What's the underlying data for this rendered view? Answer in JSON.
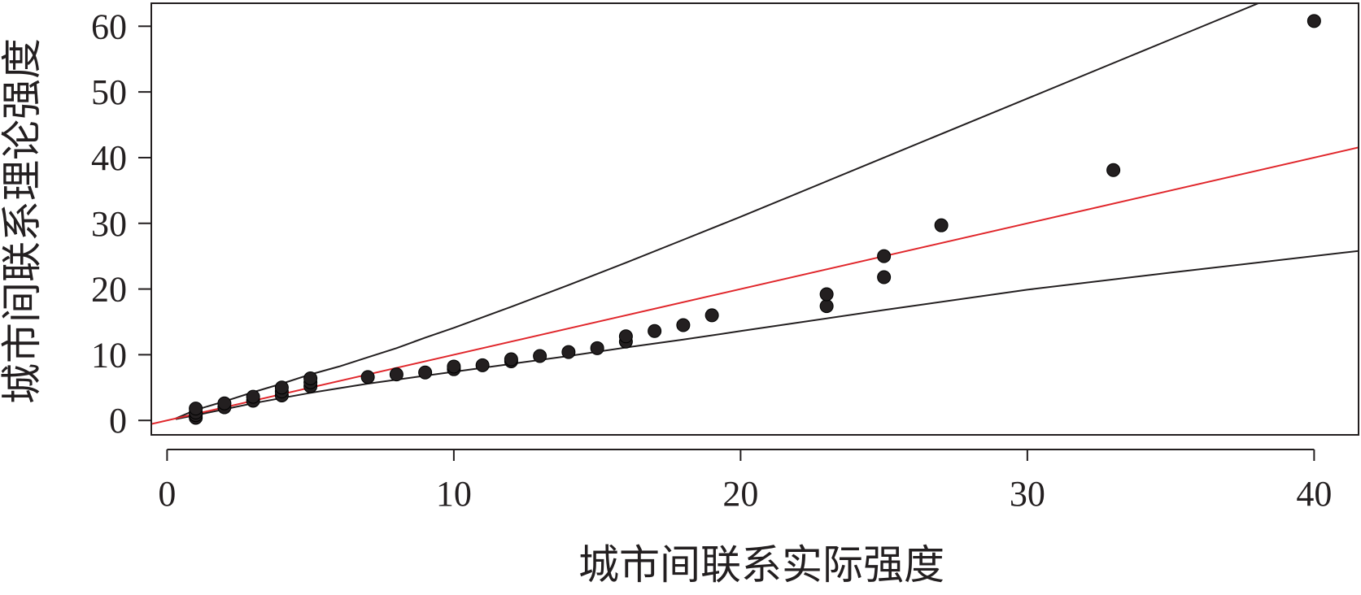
{
  "chart_data": {
    "type": "scatter",
    "title": "",
    "xlabel": "城市间联系实际强度",
    "ylabel": "城市间联系理论强度",
    "xlim": [
      -0.55,
      41.55
    ],
    "ylim": [
      -2.2,
      63.5
    ],
    "xticks": [
      0,
      10,
      20,
      30,
      40
    ],
    "yticks": [
      0,
      10,
      20,
      30,
      40,
      50,
      60
    ],
    "grid": false,
    "legend": "none",
    "colors": {
      "points": "#231f20",
      "reference_line": "#e0262b",
      "bounds": "#231f20",
      "frame": "#231f20"
    },
    "points": [
      {
        "x": 1,
        "y": 0.4
      },
      {
        "x": 1,
        "y": 0.8
      },
      {
        "x": 1,
        "y": 1.2
      },
      {
        "x": 1,
        "y": 1.8
      },
      {
        "x": 2,
        "y": 2.0
      },
      {
        "x": 2,
        "y": 2.6
      },
      {
        "x": 3,
        "y": 3.0
      },
      {
        "x": 3,
        "y": 3.6
      },
      {
        "x": 4,
        "y": 3.8
      },
      {
        "x": 4,
        "y": 4.4
      },
      {
        "x": 4,
        "y": 5.0
      },
      {
        "x": 5,
        "y": 5.2
      },
      {
        "x": 5,
        "y": 5.8
      },
      {
        "x": 5,
        "y": 6.4
      },
      {
        "x": 7,
        "y": 6.6
      },
      {
        "x": 8,
        "y": 7.0
      },
      {
        "x": 9,
        "y": 7.3
      },
      {
        "x": 10,
        "y": 7.8
      },
      {
        "x": 10,
        "y": 8.2
      },
      {
        "x": 11,
        "y": 8.4
      },
      {
        "x": 12,
        "y": 9.0
      },
      {
        "x": 12,
        "y": 9.3
      },
      {
        "x": 13,
        "y": 9.8
      },
      {
        "x": 14,
        "y": 10.4
      },
      {
        "x": 15,
        "y": 11.0
      },
      {
        "x": 16,
        "y": 12.0
      },
      {
        "x": 16,
        "y": 12.8
      },
      {
        "x": 17,
        "y": 13.6
      },
      {
        "x": 18,
        "y": 14.5
      },
      {
        "x": 19,
        "y": 16.0
      },
      {
        "x": 23,
        "y": 17.4
      },
      {
        "x": 23,
        "y": 19.2
      },
      {
        "x": 25,
        "y": 21.8
      },
      {
        "x": 25,
        "y": 25.0
      },
      {
        "x": 27,
        "y": 29.7
      },
      {
        "x": 33,
        "y": 38.1
      },
      {
        "x": 40,
        "y": 60.8
      }
    ],
    "reference_line": {
      "x": [
        -0.55,
        41.55
      ],
      "y": [
        -0.55,
        41.55
      ]
    },
    "upper_bound": {
      "x": [
        0.3,
        1,
        2,
        3,
        4,
        5,
        6,
        7,
        8,
        9,
        10,
        12,
        14,
        16,
        18,
        20,
        25,
        30,
        35,
        40
      ],
      "y": [
        0.3,
        1.6,
        2.9,
        4.3,
        5.6,
        7.0,
        8.2,
        9.6,
        11.0,
        12.6,
        14.1,
        17.3,
        20.6,
        24.0,
        27.5,
        31.0,
        40.0,
        49.0,
        58.0,
        67.0
      ]
    },
    "lower_bound": {
      "x": [
        0.3,
        1,
        2,
        3,
        4,
        5,
        6,
        7,
        8,
        10,
        12,
        14,
        16,
        18,
        20,
        25,
        30,
        35,
        41.55
      ],
      "y": [
        0.2,
        0.8,
        1.7,
        2.6,
        3.4,
        4.2,
        4.9,
        5.6,
        6.2,
        7.4,
        8.6,
        9.8,
        11.1,
        12.3,
        13.6,
        16.8,
        19.9,
        22.5,
        25.8
      ]
    }
  }
}
